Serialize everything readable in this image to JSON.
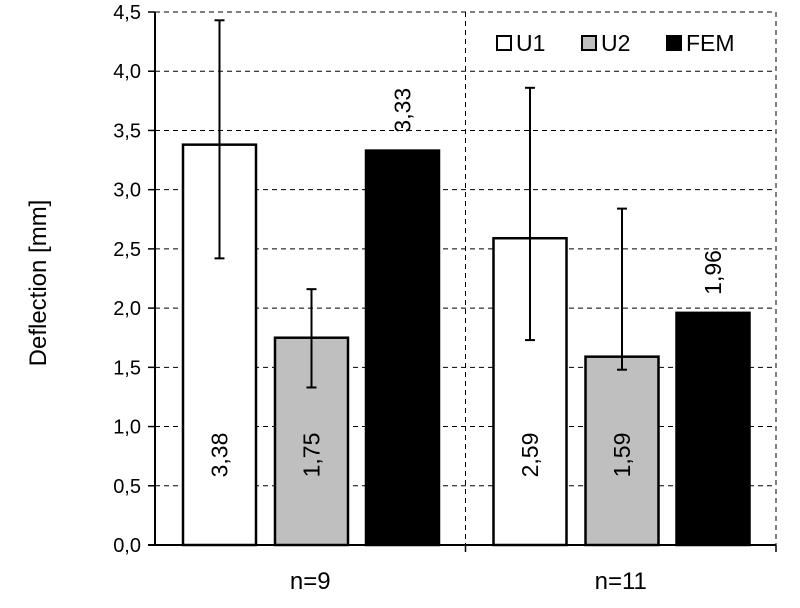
{
  "chart_data": {
    "type": "bar",
    "ylabel": "Deflection [mm]",
    "xlabel": "",
    "ylim": [
      0,
      4.5
    ],
    "ytick_step": 0.5,
    "decimal_separator": ",",
    "grid": true,
    "legend_position": "top-right",
    "categories": [
      "n=9",
      "n=11"
    ],
    "series": [
      {
        "name": "U1",
        "color": "#ffffff",
        "values": [
          3.38,
          2.59
        ],
        "labels": [
          "3,38",
          "2,59"
        ],
        "label_position": "inside",
        "error_low": [
          2.42,
          1.73
        ],
        "error_high": [
          4.43,
          3.86
        ]
      },
      {
        "name": "U2",
        "color": "#bfbfbf",
        "values": [
          1.75,
          1.59
        ],
        "labels": [
          "1,75",
          "1,59"
        ],
        "label_position": "inside",
        "error_low": [
          1.33,
          1.48
        ],
        "error_high": [
          2.16,
          2.84
        ]
      },
      {
        "name": "FEM",
        "color": "#000000",
        "values": [
          3.33,
          1.96
        ],
        "labels": [
          "3,33",
          "1,96"
        ],
        "label_position": "above"
      }
    ]
  }
}
